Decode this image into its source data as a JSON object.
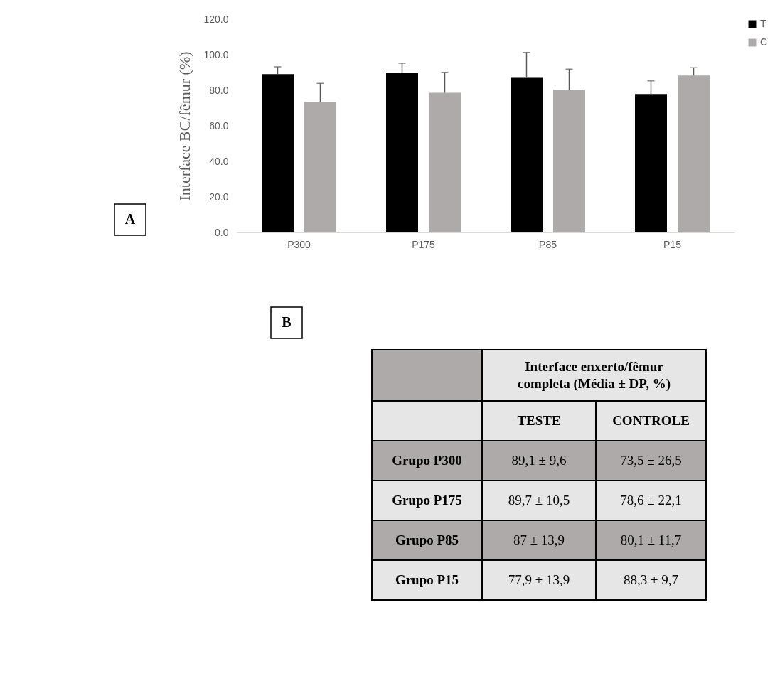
{
  "chart_data": {
    "type": "bar",
    "ylabel": "Interface  BC/fêmur  (%)",
    "categories": [
      "P300",
      "P175",
      "P85",
      "P15"
    ],
    "series": [
      {
        "name": "T",
        "color": "#000000",
        "values": [
          89.1,
          89.7,
          87,
          77.9
        ],
        "errors": [
          4.1,
          5.5,
          14.3,
          7.4
        ]
      },
      {
        "name": "C",
        "color": "#aeaaaa",
        "values": [
          73.5,
          78.6,
          80.1,
          88.3
        ],
        "errors": [
          10.4,
          11.5,
          11.8,
          4.4
        ]
      }
    ],
    "ylim": [
      0,
      120
    ],
    "yticks": [
      {
        "value": 0,
        "label": "0.0"
      },
      {
        "value": 20,
        "label": "20.0"
      },
      {
        "value": 40,
        "label": "40.0"
      },
      {
        "value": 60,
        "label": "60.0"
      },
      {
        "value": 80,
        "label": "80.0"
      },
      {
        "value": 100,
        "label": "100.0"
      },
      {
        "value": 120,
        "label": "120.0"
      }
    ],
    "grid": false,
    "legend": "right",
    "annotations": [
      "A",
      "B",
      "Interface enxerto/fêmur completa (Média ± DP, %)",
      "TESTE",
      "CONTROLE",
      "Grupo P300",
      "Grupo P175",
      "Grupo P85",
      "Grupo P15",
      "89,1 ± 9,6",
      "73,5 ± 26,5",
      "89,7 ± 10,5",
      "78,6 ± 22,1",
      "87 ± 13,9",
      "80,1 ± 11,7",
      "77,9 ± 13,9",
      "88,3 ± 9,7"
    ]
  }
}
